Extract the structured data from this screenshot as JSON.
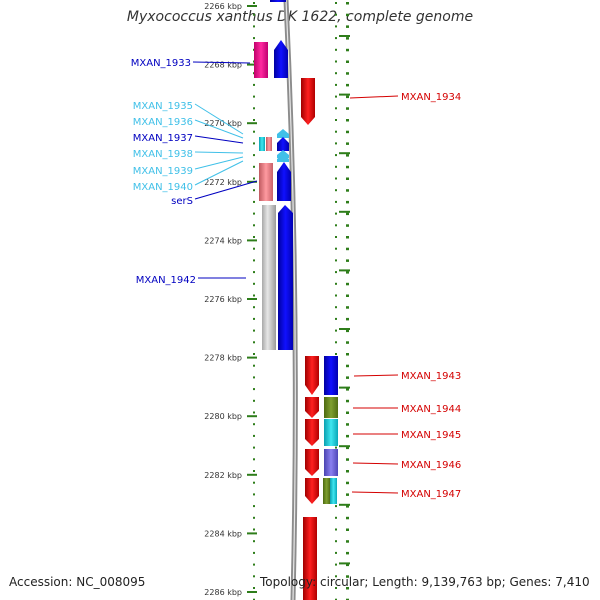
{
  "title": "Myxococcus xanthus DK 1622, complete genome",
  "footer": {
    "accession": "Accession: NC_008095",
    "topology": "Topology: circular; Length: 9,139,763 bp; Genes: 7,410"
  },
  "colors": {
    "background": "#ffffff",
    "backbone": "#8c8c8c",
    "tick_dots": "#2e7d1a",
    "ruler_text": "#333333",
    "left_label_dark": "#0000c0",
    "left_label_light": "#40c0e8",
    "right_label": "#d40000"
  },
  "ruler": {
    "unit": "kbp",
    "ticks": [
      "2266 kbp",
      "2268 kbp",
      "2270 kbp",
      "2272 kbp",
      "2274 kbp",
      "2276 kbp",
      "2278 kbp",
      "2280 kbp",
      "2282 kbp",
      "2284 kbp",
      "2286 kbp"
    ]
  },
  "left_labels": [
    {
      "text": "MXAN_1933",
      "tone": "dark"
    },
    {
      "text": "MXAN_1935",
      "tone": "light"
    },
    {
      "text": "MXAN_1936",
      "tone": "light"
    },
    {
      "text": "MXAN_1937",
      "tone": "dark"
    },
    {
      "text": "MXAN_1938",
      "tone": "light"
    },
    {
      "text": "MXAN_1939",
      "tone": "light"
    },
    {
      "text": "MXAN_1940",
      "tone": "light"
    },
    {
      "text": "serS",
      "tone": "dark"
    },
    {
      "text": "MXAN_1942",
      "tone": "dark"
    }
  ],
  "right_labels": [
    {
      "text": "MXAN_1934"
    },
    {
      "text": "MXAN_1943"
    },
    {
      "text": "MXAN_1944"
    },
    {
      "text": "MXAN_1945"
    },
    {
      "text": "MXAN_1946"
    },
    {
      "text": "MXAN_1947"
    }
  ]
}
